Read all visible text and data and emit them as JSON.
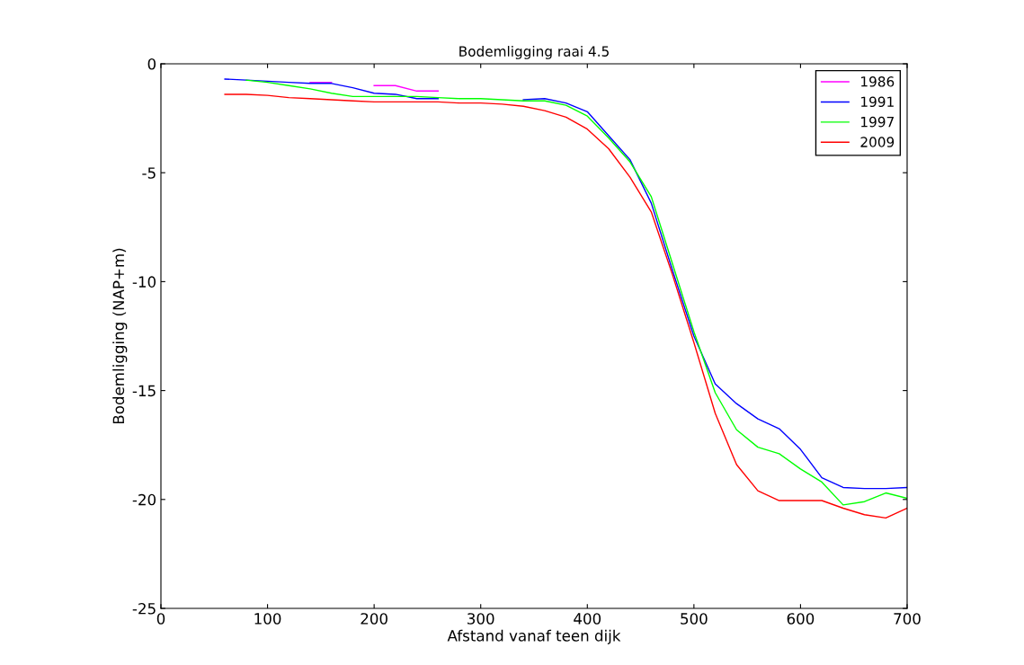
{
  "chart_data": {
    "type": "line",
    "title": "Bodemligging raai 4.5",
    "xlabel": "Afstand vanaf teen dijk",
    "ylabel": "Bodemligging (NAP+m)",
    "xlim": [
      0,
      700
    ],
    "xticks": [
      0,
      100,
      200,
      300,
      400,
      500,
      600,
      700
    ],
    "ylim": [
      -25,
      0
    ],
    "yticks": [
      -25,
      -20,
      -15,
      -10,
      -5,
      0
    ],
    "grid": false,
    "legend": "top right",
    "marker": "none",
    "line_style": "solid",
    "series": [
      {
        "name": "1986",
        "color": "#ff00ff",
        "x": [
          140,
          160,
          180,
          200,
          220,
          240,
          260
        ],
        "values": [
          -0.85,
          -0.85,
          null,
          -1.0,
          -1.0,
          -1.25,
          -1.25
        ]
      },
      {
        "name": "1991",
        "color": "#0000ff",
        "x": [
          60,
          80,
          100,
          120,
          140,
          160,
          180,
          200,
          220,
          240,
          260,
          280,
          300,
          320,
          340,
          360,
          380,
          400,
          420,
          440,
          460,
          480,
          500,
          520,
          540,
          560,
          580,
          600,
          620,
          640,
          660,
          680,
          700
        ],
        "values": [
          -0.7,
          -0.75,
          -0.8,
          -0.85,
          -0.9,
          -0.9,
          -1.1,
          -1.35,
          -1.4,
          -1.6,
          -1.6,
          null,
          null,
          null,
          -1.65,
          -1.6,
          -1.8,
          -2.2,
          -3.3,
          -4.4,
          -6.4,
          -9.5,
          -12.5,
          -14.7,
          -15.6,
          -16.3,
          -16.75,
          -17.7,
          -19.0,
          -19.45,
          -19.5,
          -19.5,
          -19.45
        ]
      },
      {
        "name": "1997",
        "color": "#00ff00",
        "x": [
          80,
          100,
          120,
          140,
          160,
          180,
          200,
          220,
          240,
          260,
          280,
          300,
          320,
          340,
          360,
          380,
          400,
          420,
          440,
          460,
          480,
          500,
          520,
          540,
          560,
          580,
          600,
          620,
          640,
          660,
          680,
          700
        ],
        "values": [
          -0.75,
          -0.85,
          -1.0,
          -1.15,
          -1.35,
          -1.5,
          -1.5,
          -1.5,
          -1.5,
          -1.55,
          -1.6,
          -1.6,
          -1.65,
          -1.7,
          -1.7,
          -1.9,
          -2.4,
          -3.4,
          -4.5,
          -6.1,
          -9.2,
          -12.3,
          -15.1,
          -16.8,
          -17.6,
          -17.9,
          -18.6,
          -19.2,
          -20.25,
          -20.1,
          -19.7,
          -19.95
        ]
      },
      {
        "name": "2009",
        "color": "#ff0000",
        "x": [
          60,
          80,
          100,
          120,
          140,
          160,
          180,
          200,
          220,
          240,
          260,
          280,
          300,
          320,
          340,
          360,
          380,
          400,
          420,
          440,
          460,
          480,
          500,
          520,
          540,
          560,
          580,
          600,
          620,
          640,
          660,
          680,
          700
        ],
        "values": [
          -1.4,
          -1.4,
          -1.45,
          -1.55,
          -1.6,
          -1.65,
          -1.7,
          -1.75,
          -1.75,
          -1.75,
          -1.75,
          -1.8,
          -1.8,
          -1.85,
          -1.95,
          -2.15,
          -2.45,
          -3.0,
          -3.9,
          -5.2,
          -6.8,
          -9.7,
          -12.8,
          -16.05,
          -18.4,
          -19.6,
          -20.05,
          -20.05,
          -20.05,
          -20.4,
          -20.7,
          -20.85,
          -20.4
        ]
      }
    ]
  }
}
